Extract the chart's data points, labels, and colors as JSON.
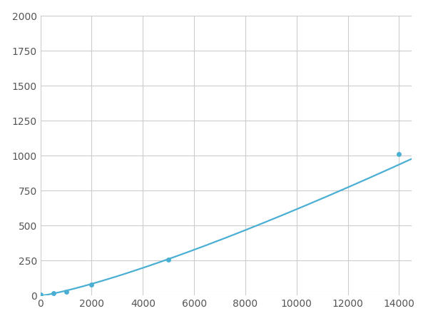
{
  "x_points": [
    0,
    500,
    1000,
    2000,
    5000,
    14000
  ],
  "y_points": [
    5,
    18,
    30,
    80,
    255,
    1010
  ],
  "line_color": "#4bafd4",
  "marker_color": "#4bafd4",
  "marker_size": 5,
  "line_width": 1.6,
  "xlim": [
    0,
    14500
  ],
  "ylim": [
    0,
    2000
  ],
  "xticks": [
    0,
    2000,
    4000,
    6000,
    8000,
    10000,
    12000,
    14000
  ],
  "yticks": [
    0,
    250,
    500,
    750,
    1000,
    1250,
    1500,
    1750,
    2000
  ],
  "grid_color": "#cccccc",
  "background_color": "#ffffff",
  "tick_label_color": "#555555",
  "tick_label_fontsize": 10,
  "power_a": 0.52,
  "power_b": 1.42
}
